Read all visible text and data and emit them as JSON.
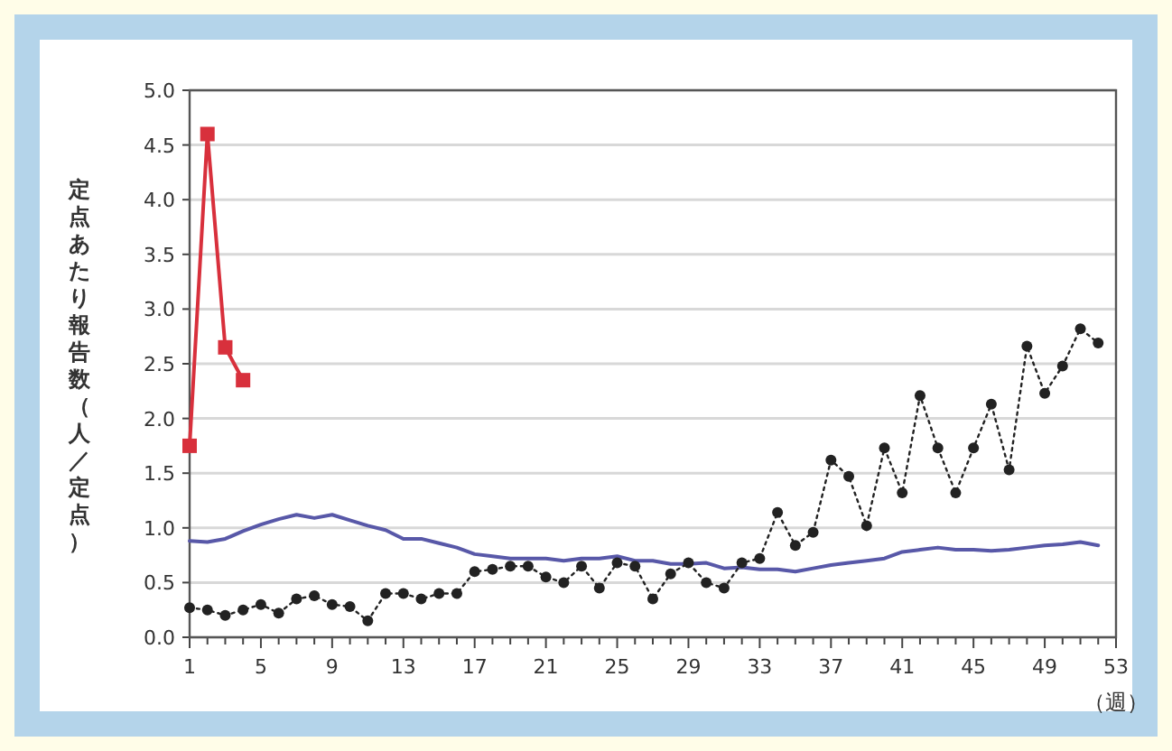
{
  "chart_data": {
    "type": "line",
    "ylabel": "定点あたり報告数（人／定点）",
    "xlabel": "（週）",
    "xlim": [
      1,
      53
    ],
    "xticks": [
      1,
      {
        "value": 2,
        "label": null
      },
      {
        "value": 3,
        "label": null
      },
      {
        "value": 4,
        "label": null
      },
      5,
      {
        "value": 6,
        "label": null
      },
      {
        "value": 7,
        "label": null
      },
      {
        "value": 8,
        "label": null
      },
      9,
      {
        "value": 10,
        "label": null
      },
      {
        "value": 11,
        "label": null
      },
      {
        "value": 12,
        "label": null
      },
      13,
      {
        "value": 14,
        "label": null
      },
      {
        "value": 15,
        "label": null
      },
      {
        "value": 16,
        "label": null
      },
      17,
      {
        "value": 18,
        "label": null
      },
      {
        "value": 19,
        "label": null
      },
      {
        "value": 20,
        "label": null
      },
      21,
      {
        "value": 22,
        "label": null
      },
      {
        "value": 23,
        "label": null
      },
      {
        "value": 24,
        "label": null
      },
      25,
      {
        "value": 26,
        "label": null
      },
      {
        "value": 27,
        "label": null
      },
      {
        "value": 28,
        "label": null
      },
      29,
      {
        "value": 30,
        "label": null
      },
      {
        "value": 31,
        "label": null
      },
      {
        "value": 32,
        "label": null
      },
      33,
      {
        "value": 34,
        "label": null
      },
      {
        "value": 35,
        "label": null
      },
      {
        "value": 36,
        "label": null
      },
      37,
      {
        "value": 38,
        "label": null
      },
      {
        "value": 39,
        "label": null
      },
      {
        "value": 40,
        "label": null
      },
      41,
      {
        "value": 42,
        "label": null
      },
      {
        "value": 43,
        "label": null
      },
      {
        "value": 44,
        "label": null
      },
      45,
      {
        "value": 46,
        "label": null
      },
      {
        "value": 47,
        "label": null
      },
      {
        "value": 48,
        "label": null
      },
      49,
      {
        "value": 50,
        "label": null
      },
      {
        "value": 51,
        "label": null
      },
      {
        "value": 52,
        "label": null
      },
      53
    ],
    "ylim": [
      0,
      5
    ],
    "yticks": [
      {
        "value": 0,
        "label": "0.0"
      },
      {
        "value": 0.5,
        "label": "0.5"
      },
      {
        "value": 1,
        "label": "1.0"
      },
      {
        "value": 1.5,
        "label": "1.5"
      },
      {
        "value": 2,
        "label": "2.0"
      },
      {
        "value": 2.5,
        "label": "2.5"
      },
      {
        "value": 3,
        "label": "3.0"
      },
      {
        "value": 3.5,
        "label": "3.5"
      },
      {
        "value": 4,
        "label": "4.0"
      },
      {
        "value": 4.5,
        "label": "4.5"
      },
      {
        "value": 5,
        "label": "5.0"
      }
    ],
    "grid": "y",
    "series": [
      {
        "color": "#5858a8",
        "marker": "none",
        "line_style": "solid",
        "x": [
          1,
          2,
          3,
          4,
          5,
          6,
          7,
          8,
          9,
          10,
          11,
          12,
          13,
          14,
          15,
          16,
          17,
          18,
          19,
          20,
          21,
          22,
          23,
          24,
          25,
          26,
          27,
          28,
          29,
          30,
          31,
          32,
          33,
          34,
          35,
          36,
          37,
          38,
          39,
          40,
          41,
          42,
          43,
          44,
          45,
          46,
          47,
          48,
          49,
          50,
          51,
          52
        ],
        "values": [
          0.88,
          0.87,
          0.9,
          0.97,
          1.03,
          1.08,
          1.12,
          1.09,
          1.12,
          1.07,
          1.02,
          0.98,
          0.9,
          0.9,
          0.86,
          0.82,
          0.76,
          0.74,
          0.72,
          0.72,
          0.72,
          0.7,
          0.72,
          0.72,
          0.74,
          0.7,
          0.7,
          0.67,
          0.67,
          0.68,
          0.63,
          0.64,
          0.62,
          0.62,
          0.6,
          0.63,
          0.66,
          0.68,
          0.7,
          0.72,
          0.78,
          0.8,
          0.82,
          0.8,
          0.8,
          0.79,
          0.8,
          0.82,
          0.84,
          0.85,
          0.87,
          0.84
        ]
      },
      {
        "color": "#222222",
        "marker": "circle",
        "line_style": "dotted",
        "x": [
          1,
          2,
          3,
          4,
          5,
          6,
          7,
          8,
          9,
          10,
          11,
          12,
          13,
          14,
          15,
          16,
          17,
          18,
          19,
          20,
          21,
          22,
          23,
          24,
          25,
          26,
          27,
          28,
          29,
          30,
          31,
          32,
          33,
          34,
          35,
          36,
          37,
          38,
          39,
          40,
          41,
          42,
          43,
          44,
          45,
          46,
          47,
          48,
          49,
          50,
          51,
          52
        ],
        "values": [
          0.27,
          0.25,
          0.2,
          0.25,
          0.3,
          0.22,
          0.35,
          0.38,
          0.3,
          0.28,
          0.15,
          0.4,
          0.4,
          0.35,
          0.4,
          0.4,
          0.6,
          0.62,
          0.65,
          0.65,
          0.55,
          0.5,
          0.65,
          0.45,
          0.68,
          0.65,
          0.35,
          0.58,
          0.68,
          0.5,
          0.45,
          0.68,
          0.72,
          1.14,
          0.84,
          0.96,
          1.62,
          1.47,
          1.02,
          1.73,
          1.32,
          2.21,
          1.73,
          1.32,
          1.73,
          2.13,
          1.53,
          2.66,
          2.23,
          2.48,
          2.82,
          2.69
        ]
      },
      {
        "color": "#d8303c",
        "marker": "square",
        "line_style": "solid",
        "x": [
          1,
          2,
          3,
          4
        ],
        "values": [
          1.75,
          4.6,
          2.65,
          2.35
        ]
      }
    ]
  }
}
